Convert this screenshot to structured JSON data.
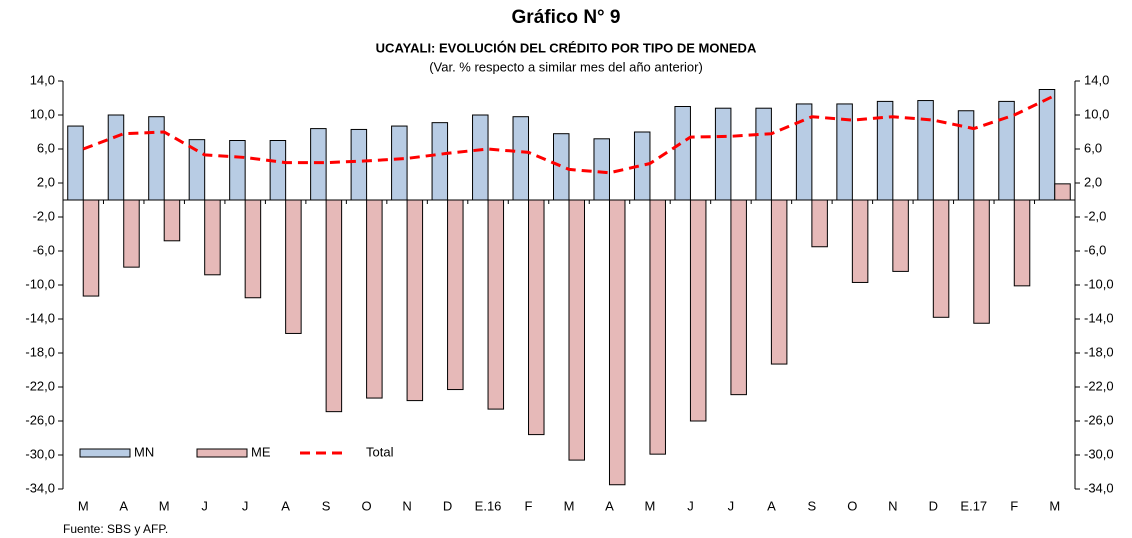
{
  "chart_data": {
    "type": "bar-line",
    "title": "Gráfico N° 9",
    "subtitle": "UCAYALI: EVOLUCIÓN DEL CRÉDITO POR TIPO DE MONEDA",
    "note": "(Var. % respecto a similar mes del año anterior)",
    "source": "Fuente: SBS y AFP.",
    "categories": [
      "M",
      "A",
      "M",
      "J",
      "J",
      "A",
      "S",
      "O",
      "N",
      "D",
      "E.16",
      "F",
      "M",
      "A",
      "M",
      "J",
      "J",
      "A",
      "S",
      "O",
      "N",
      "D",
      "E.17",
      "F",
      "M"
    ],
    "series": [
      {
        "name": "MN",
        "type": "bar",
        "color": "#b8cce4",
        "values": [
          8.7,
          10.0,
          9.8,
          7.1,
          7.0,
          7.0,
          8.4,
          8.3,
          8.7,
          9.1,
          10.0,
          9.8,
          7.8,
          7.2,
          8.0,
          11.0,
          10.8,
          10.8,
          11.3,
          11.3,
          11.6,
          11.7,
          10.5,
          11.6,
          13.0
        ]
      },
      {
        "name": "ME",
        "type": "bar",
        "color": "#e6b9b8",
        "values": [
          -11.3,
          -7.9,
          -4.8,
          -8.8,
          -11.5,
          -15.7,
          -24.9,
          -23.3,
          -23.6,
          -22.3,
          -24.6,
          -27.6,
          -30.6,
          -33.5,
          -29.9,
          -26.0,
          -22.9,
          -19.3,
          -5.5,
          -9.7,
          -8.4,
          -13.8,
          -14.5,
          -10.1,
          1.9
        ]
      },
      {
        "name": "Total",
        "type": "line",
        "color": "#ff0000",
        "values": [
          6.0,
          7.8,
          8.0,
          5.3,
          5.0,
          4.4,
          4.4,
          4.6,
          4.9,
          5.5,
          6.0,
          5.6,
          3.6,
          3.2,
          4.3,
          7.4,
          7.5,
          7.8,
          9.8,
          9.4,
          9.8,
          9.4,
          8.4,
          10.0,
          12.3
        ]
      }
    ],
    "ylim": [
      -34,
      14
    ],
    "yticks": [
      {
        "value": 14,
        "label": "14,0"
      },
      {
        "value": 10,
        "label": "10,0"
      },
      {
        "value": 6,
        "label": "6,0"
      },
      {
        "value": 2,
        "label": "2,0"
      },
      {
        "value": -2,
        "label": "-2,0"
      },
      {
        "value": -6,
        "label": "-6,0"
      },
      {
        "value": -10,
        "label": "-10,0"
      },
      {
        "value": -14,
        "label": "-14,0"
      },
      {
        "value": -18,
        "label": "-18,0"
      },
      {
        "value": -22,
        "label": "-22,0"
      },
      {
        "value": -26,
        "label": "-26,0"
      },
      {
        "value": -30,
        "label": "-30,0"
      },
      {
        "value": -34,
        "label": "-34,0"
      }
    ],
    "y2lim": [
      -34,
      14
    ],
    "y2ticks": [
      {
        "value": 14,
        "label": "14,0"
      },
      {
        "value": 10,
        "label": "10,0"
      },
      {
        "value": 6,
        "label": "6,0"
      },
      {
        "value": 2,
        "label": "2,0"
      },
      {
        "value": -2,
        "label": "-2,0"
      },
      {
        "value": -6,
        "label": "-6,0"
      },
      {
        "value": -10,
        "label": "-10,0"
      },
      {
        "value": -14,
        "label": "-14,0"
      },
      {
        "value": -18,
        "label": "-18,0"
      },
      {
        "value": -22,
        "label": "-22,0"
      },
      {
        "value": -26,
        "label": "-26,0"
      },
      {
        "value": -30,
        "label": "-30,0"
      },
      {
        "value": -34,
        "label": "-34,0"
      }
    ],
    "grid": false,
    "legend": "bottom-left"
  }
}
